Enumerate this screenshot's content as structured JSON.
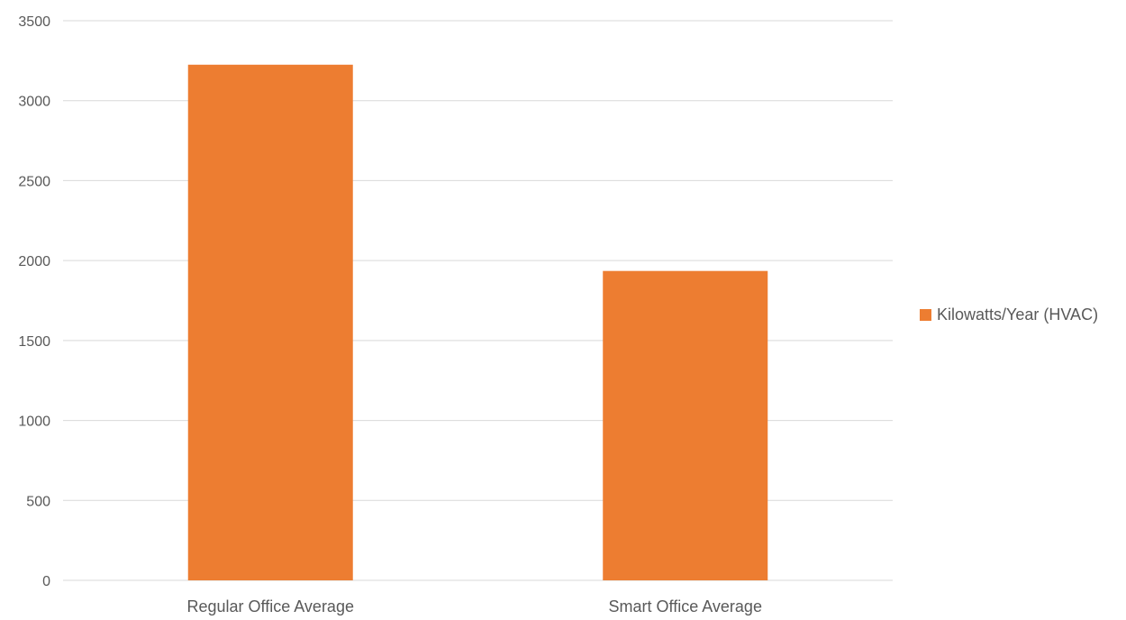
{
  "chart_data": {
    "type": "bar",
    "title": "",
    "xlabel": "",
    "ylabel": "",
    "categories": [
      "Regular Office Average",
      "Smart Office Average"
    ],
    "series": [
      {
        "name": "Kilowatts/Year (HVAC)",
        "values": [
          3225,
          1935
        ],
        "color": "#ED7D31"
      }
    ],
    "ylim": [
      0,
      3500
    ],
    "yticks": [
      0,
      500,
      1000,
      1500,
      2000,
      2500,
      3000,
      3500
    ],
    "grid": true,
    "legend": "right",
    "colors": {
      "gridline": "#D9D9D9",
      "text": "#595959"
    }
  }
}
